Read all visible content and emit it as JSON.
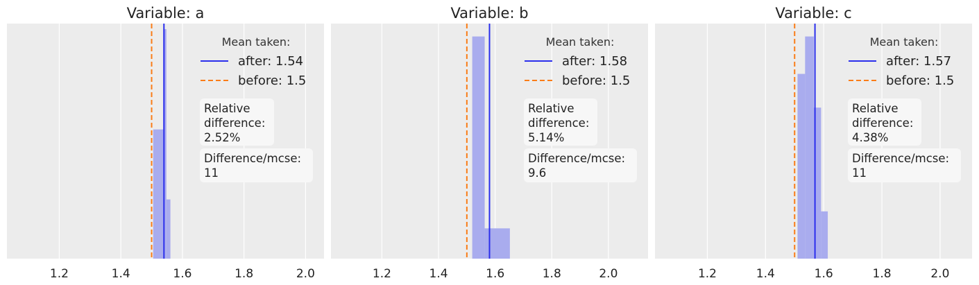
{
  "chart_data": [
    {
      "type": "histogram",
      "title": "Variable: a",
      "xlim": [
        1.03,
        2.06
      ],
      "xticks": [
        "1.2",
        "1.4",
        "1.6",
        "1.8",
        "2.0"
      ],
      "xtick_values": [
        1.2,
        1.4,
        1.6,
        1.8,
        2.0
      ],
      "yaxis_visible": false,
      "grid": true,
      "ylim": [
        0,
        1
      ],
      "bars": [
        {
          "x0": 1.505,
          "x1": 1.538,
          "height": 0.563
        },
        {
          "x0": 1.538,
          "x1": 1.548,
          "height": 1.0
        },
        {
          "x0": 1.548,
          "x1": 1.561,
          "height": 0.258
        }
      ],
      "lines": [
        {
          "name": "after",
          "value": 1.54,
          "style": "solid",
          "color": "#2a2eec"
        },
        {
          "name": "before",
          "value": 1.5,
          "style": "dashed",
          "color": "#fa7c17"
        }
      ],
      "legend": {
        "title": "Mean taken:",
        "entries": [
          {
            "label": "after: 1.54",
            "style": "solid",
            "color": "#2a2eec"
          },
          {
            "label": "before: 1.5",
            "style": "dashed",
            "color": "#fa7c17"
          }
        ],
        "position": "top-right"
      },
      "annotations": [
        {
          "lines": [
            "Relative",
            "difference:",
            "2.52%"
          ]
        },
        {
          "lines": [
            "Difference/mcse:",
            "11"
          ]
        }
      ]
    },
    {
      "type": "histogram",
      "title": "Variable: b",
      "xlim": [
        1.02,
        2.14
      ],
      "xticks": [
        "1.2",
        "1.4",
        "1.6",
        "1.8",
        "2.0"
      ],
      "xtick_values": [
        1.2,
        1.4,
        1.6,
        1.8,
        2.0
      ],
      "yaxis_visible": false,
      "grid": true,
      "ylim": [
        0,
        1
      ],
      "bars": [
        {
          "x0": 1.519,
          "x1": 1.563,
          "height": 0.968
        },
        {
          "x0": 1.563,
          "x1": 1.652,
          "height": 0.132
        }
      ],
      "lines": [
        {
          "name": "after",
          "value": 1.58,
          "style": "solid",
          "color": "#2a2eec"
        },
        {
          "name": "before",
          "value": 1.5,
          "style": "dashed",
          "color": "#fa7c17"
        }
      ],
      "legend": {
        "title": "Mean taken:",
        "entries": [
          {
            "label": "after: 1.58",
            "style": "solid",
            "color": "#2a2eec"
          },
          {
            "label": "before: 1.5",
            "style": "dashed",
            "color": "#fa7c17"
          }
        ],
        "position": "top-right"
      },
      "annotations": [
        {
          "lines": [
            "Relative",
            "difference:",
            "5.14%"
          ]
        },
        {
          "lines": [
            "Difference/mcse:",
            "9.6"
          ]
        }
      ]
    },
    {
      "type": "histogram",
      "title": "Variable: c",
      "xlim": [
        1.02,
        2.11
      ],
      "xticks": [
        "1.2",
        "1.4",
        "1.6",
        "1.8",
        "2.0"
      ],
      "xtick_values": [
        1.2,
        1.4,
        1.6,
        1.8,
        2.0
      ],
      "yaxis_visible": false,
      "grid": true,
      "ylim": [
        0,
        1
      ],
      "bars": [
        {
          "x0": 1.51,
          "x1": 1.536,
          "height": 0.805
        },
        {
          "x0": 1.536,
          "x1": 1.566,
          "height": 0.968
        },
        {
          "x0": 1.566,
          "x1": 1.591,
          "height": 0.658
        },
        {
          "x0": 1.591,
          "x1": 1.614,
          "height": 0.206
        }
      ],
      "lines": [
        {
          "name": "after",
          "value": 1.57,
          "style": "solid",
          "color": "#2a2eec"
        },
        {
          "name": "before",
          "value": 1.5,
          "style": "dashed",
          "color": "#fa7c17"
        }
      ],
      "legend": {
        "title": "Mean taken:",
        "entries": [
          {
            "label": "after: 1.57",
            "style": "solid",
            "color": "#2a2eec"
          },
          {
            "label": "before: 1.5",
            "style": "dashed",
            "color": "#fa7c17"
          }
        ],
        "position": "top-right"
      },
      "annotations": [
        {
          "lines": [
            "Relative",
            "difference:",
            "4.38%"
          ]
        },
        {
          "lines": [
            "Difference/mcse:",
            "11"
          ]
        }
      ]
    }
  ],
  "colors": {
    "panel_background": "#ececec",
    "grid": "#ffffff",
    "bar_fill": "#a9acee",
    "after_line": "#2a2eec",
    "before_line": "#fa7c17",
    "annotation_box": "#f7f7f7"
  }
}
